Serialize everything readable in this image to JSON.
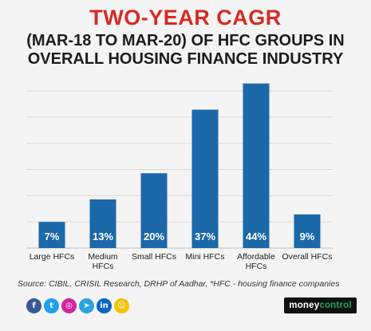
{
  "chart_data": {
    "type": "bar",
    "title": "TWO-YEAR CAGR",
    "subtitle": "(MAR-18 TO MAR-20) OF HFC GROUPS IN OVERALL HOUSING FINANCE INDUSTRY",
    "categories": [
      [
        "Large HFCs"
      ],
      [
        "Medium",
        "HFCs"
      ],
      [
        "Small HFCs"
      ],
      [
        "Mini HFCs"
      ],
      [
        "Affordable",
        "HFCs"
      ],
      [
        "Overall HFCs"
      ]
    ],
    "values": [
      7,
      13,
      20,
      37,
      44,
      9
    ],
    "data_labels": [
      "7%",
      "13%",
      "20%",
      "37%",
      "44%",
      "9%"
    ],
    "unit": "%",
    "ylim": [
      0,
      45
    ],
    "grid": true,
    "bar_color": "#1b69a9",
    "xlabel": "",
    "ylabel": ""
  },
  "source": "Source: CIBIL, CRISIL Research, DRHP of Aadhar, *HFC - housing finance companies",
  "social": [
    {
      "icon": "facebook-icon",
      "glyph": "f",
      "color": "#3b5998"
    },
    {
      "icon": "twitter-icon",
      "glyph": "t",
      "color": "#1da1f2"
    },
    {
      "icon": "instagram-icon",
      "glyph": "◎",
      "color": "#d6249f"
    },
    {
      "icon": "telegram-icon",
      "glyph": "➤",
      "color": "#2aa3df"
    },
    {
      "icon": "linkedin-icon",
      "glyph": "in",
      "color": "#0a66c2"
    },
    {
      "icon": "snapchat-icon",
      "glyph": "☺",
      "color": "#f2c200"
    }
  ],
  "brand": {
    "part1": "money",
    "part2": "control"
  }
}
